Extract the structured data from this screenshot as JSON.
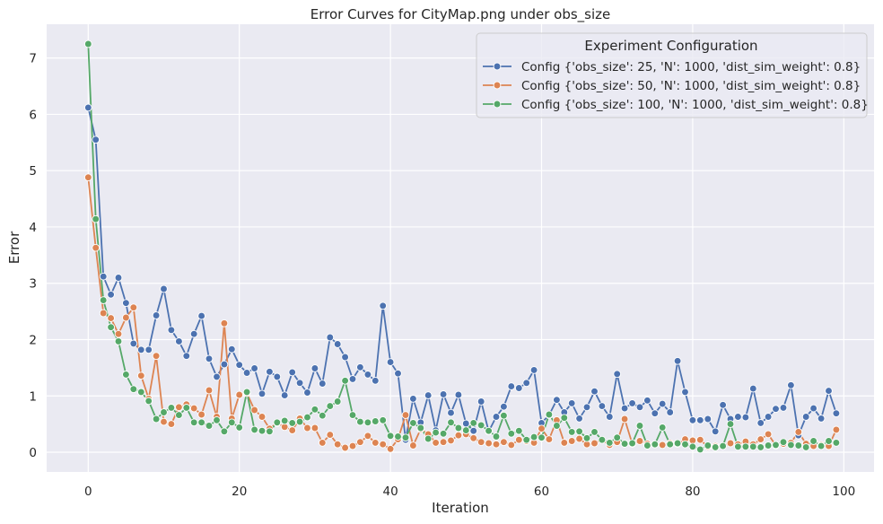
{
  "chart_data": {
    "type": "line",
    "title": "Error Curves for CityMap.png under obs_size",
    "xlabel": "Iteration",
    "ylabel": "Error",
    "xlim": [
      -5.5,
      104
    ],
    "ylim": [
      -0.35,
      7.6
    ],
    "x_ticks": [
      0,
      20,
      40,
      60,
      80,
      100
    ],
    "y_ticks": [
      0,
      1,
      2,
      3,
      4,
      5,
      6,
      7
    ],
    "grid": true,
    "style": "seaborn-darkgrid",
    "legend": {
      "title": "Experiment Configuration",
      "placement": "top-right"
    },
    "x": [
      0,
      1,
      2,
      3,
      4,
      5,
      6,
      7,
      8,
      9,
      10,
      11,
      12,
      13,
      14,
      15,
      16,
      17,
      18,
      19,
      20,
      21,
      22,
      23,
      24,
      25,
      26,
      27,
      28,
      29,
      30,
      31,
      32,
      33,
      34,
      35,
      36,
      37,
      38,
      39,
      40,
      41,
      42,
      43,
      44,
      45,
      46,
      47,
      48,
      49,
      50,
      51,
      52,
      53,
      54,
      55,
      56,
      57,
      58,
      59,
      60,
      61,
      62,
      63,
      64,
      65,
      66,
      67,
      68,
      69,
      70,
      71,
      72,
      73,
      74,
      75,
      76,
      77,
      78,
      79,
      80,
      81,
      82,
      83,
      84,
      85,
      86,
      87,
      88,
      89,
      90,
      91,
      92,
      93,
      94,
      95,
      96,
      97,
      98,
      99
    ],
    "series": [
      {
        "name": "Config {'obs_size': 25, 'N': 1000, 'dist_sim_weight': 0.8}",
        "color": "#4c72b0",
        "values": [
          6.12,
          5.55,
          3.12,
          2.8,
          3.1,
          2.65,
          1.93,
          1.82,
          1.82,
          2.43,
          2.9,
          2.17,
          1.97,
          1.71,
          2.1,
          2.42,
          1.66,
          1.34,
          1.56,
          1.83,
          1.55,
          1.41,
          1.49,
          1.04,
          1.43,
          1.34,
          1.01,
          1.42,
          1.23,
          1.06,
          1.49,
          1.22,
          2.04,
          1.92,
          1.69,
          1.3,
          1.51,
          1.38,
          1.27,
          2.6,
          1.6,
          1.4,
          0.22,
          0.95,
          0.53,
          1.01,
          0.39,
          1.03,
          0.7,
          1.02,
          0.51,
          0.38,
          0.9,
          0.37,
          0.63,
          0.81,
          1.17,
          1.14,
          1.23,
          1.46,
          0.52,
          0.66,
          0.93,
          0.71,
          0.87,
          0.6,
          0.8,
          1.08,
          0.82,
          0.63,
          1.39,
          0.78,
          0.87,
          0.8,
          0.92,
          0.69,
          0.86,
          0.71,
          1.62,
          1.07,
          0.57,
          0.57,
          0.59,
          0.37,
          0.84,
          0.59,
          0.63,
          0.62,
          1.13,
          0.52,
          0.63,
          0.77,
          0.79,
          1.19,
          0.3,
          0.63,
          0.78,
          0.6,
          1.09,
          0.69
        ]
      },
      {
        "name": "Config {'obs_size': 50, 'N': 1000, 'dist_sim_weight': 0.8}",
        "color": "#dd8452",
        "values": [
          4.88,
          3.63,
          2.47,
          2.38,
          2.1,
          2.39,
          2.57,
          1.36,
          0.95,
          1.71,
          0.54,
          0.5,
          0.8,
          0.85,
          0.78,
          0.67,
          1.1,
          0.63,
          2.29,
          0.6,
          1.02,
          1.05,
          0.75,
          0.63,
          0.42,
          0.52,
          0.45,
          0.39,
          0.6,
          0.43,
          0.43,
          0.17,
          0.31,
          0.14,
          0.08,
          0.11,
          0.18,
          0.29,
          0.17,
          0.14,
          0.06,
          0.23,
          0.66,
          0.12,
          0.41,
          0.32,
          0.17,
          0.18,
          0.21,
          0.3,
          0.32,
          0.25,
          0.18,
          0.16,
          0.14,
          0.18,
          0.13,
          0.22,
          0.2,
          0.17,
          0.42,
          0.23,
          0.57,
          0.17,
          0.2,
          0.24,
          0.14,
          0.16,
          0.22,
          0.13,
          0.18,
          0.59,
          0.15,
          0.2,
          0.15,
          0.14,
          0.13,
          0.16,
          0.15,
          0.23,
          0.21,
          0.22,
          0.1,
          0.11,
          0.11,
          0.16,
          0.14,
          0.19,
          0.14,
          0.23,
          0.32,
          0.12,
          0.15,
          0.17,
          0.36,
          0.15,
          0.11,
          0.13,
          0.11,
          0.4
        ]
      },
      {
        "name": "Config {'obs_size': 100, 'N': 1000, 'dist_sim_weight': 0.8}",
        "color": "#55a868",
        "values": [
          7.25,
          4.14,
          2.7,
          2.22,
          1.97,
          1.38,
          1.12,
          1.07,
          0.91,
          0.59,
          0.71,
          0.79,
          0.66,
          0.79,
          0.53,
          0.53,
          0.47,
          0.57,
          0.37,
          0.53,
          0.44,
          1.07,
          0.4,
          0.38,
          0.37,
          0.53,
          0.56,
          0.52,
          0.54,
          0.62,
          0.76,
          0.65,
          0.82,
          0.9,
          1.27,
          0.66,
          0.54,
          0.53,
          0.55,
          0.57,
          0.29,
          0.28,
          0.26,
          0.52,
          0.43,
          0.24,
          0.35,
          0.33,
          0.53,
          0.43,
          0.39,
          0.52,
          0.48,
          0.38,
          0.28,
          0.65,
          0.33,
          0.38,
          0.22,
          0.27,
          0.26,
          0.67,
          0.47,
          0.61,
          0.36,
          0.37,
          0.25,
          0.36,
          0.22,
          0.17,
          0.26,
          0.15,
          0.16,
          0.47,
          0.12,
          0.14,
          0.44,
          0.14,
          0.16,
          0.14,
          0.1,
          0.05,
          0.12,
          0.09,
          0.11,
          0.5,
          0.1,
          0.1,
          0.1,
          0.09,
          0.12,
          0.13,
          0.18,
          0.13,
          0.12,
          0.09,
          0.2,
          0.11,
          0.2,
          0.17
        ]
      }
    ]
  }
}
